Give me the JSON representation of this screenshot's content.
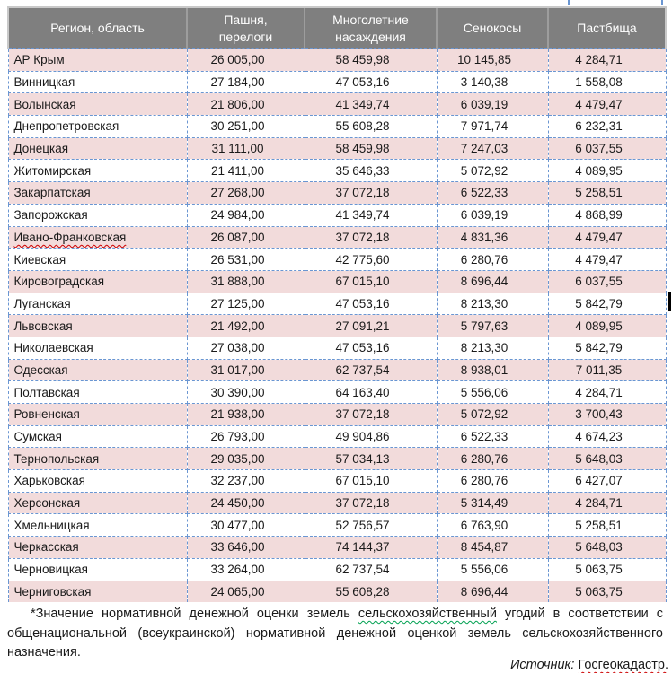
{
  "table": {
    "headers": [
      {
        "lines": [
          "Регион, область"
        ]
      },
      {
        "lines": [
          "Пашня,",
          "перелоги"
        ]
      },
      {
        "lines": [
          "Многолетние",
          "насаждения"
        ]
      },
      {
        "lines": [
          "Сенокосы"
        ]
      },
      {
        "lines": [
          "Пастбища"
        ]
      }
    ],
    "rows": [
      {
        "region": "АР Крым",
        "values": [
          "26 005,00",
          "58 459,98",
          "10 145,85",
          "4 284,71"
        ]
      },
      {
        "region": "Винницкая",
        "values": [
          "27 184,00",
          "47 053,16",
          "3 140,38",
          "1 558,08"
        ]
      },
      {
        "region": "Волынская",
        "values": [
          "21 806,00",
          "41 349,74",
          "6 039,19",
          "4 479,47"
        ]
      },
      {
        "region": "Днепропетровская",
        "values": [
          "30 251,00",
          "55 608,28",
          "7 971,74",
          "6 232,31"
        ]
      },
      {
        "region": "Донецкая",
        "values": [
          "31 111,00",
          "58 459,98",
          "7 247,03",
          "6 037,55"
        ]
      },
      {
        "region": "Житомирская",
        "values": [
          "21 411,00",
          "35 646,33",
          "5 072,92",
          "4 089,95"
        ]
      },
      {
        "region": "Закарпатская",
        "values": [
          "27 268,00",
          "37 072,18",
          "6 522,33",
          "5 258,51"
        ]
      },
      {
        "region": "Запорожская",
        "values": [
          "24 984,00",
          "41 349,74",
          "6 039,19",
          "4 868,99"
        ]
      },
      {
        "region": "Ивано-Франковская",
        "misspelled": true,
        "values": [
          "26 087,00",
          "37 072,18",
          "4 831,36",
          "4 479,47"
        ]
      },
      {
        "region": "Киевская",
        "values": [
          "26 531,00",
          "42 775,60",
          "6 280,76",
          "4 479,47"
        ]
      },
      {
        "region": "Кировоградская",
        "values": [
          "31 888,00",
          "67 015,10",
          "8 696,44",
          "6 037,55"
        ]
      },
      {
        "region": "Луганская",
        "values": [
          "27 125,00",
          "47 053,16",
          "8 213,30",
          "5 842,79"
        ]
      },
      {
        "region": "Львовская",
        "values": [
          "21 492,00",
          "27 091,21",
          "5 797,63",
          "4 089,95"
        ]
      },
      {
        "region": "Николаевская",
        "values": [
          "27 038,00",
          "47 053,16",
          "8 213,30",
          "5 842,79"
        ]
      },
      {
        "region": "Одесская",
        "values": [
          "31 017,00",
          "62 737,54",
          "8 938,01",
          "7 011,35"
        ]
      },
      {
        "region": "Полтавская",
        "values": [
          "30 390,00",
          "64 163,40",
          "5 556,06",
          "4 284,71"
        ]
      },
      {
        "region": "Ровненская",
        "values": [
          "21 938,00",
          "37 072,18",
          "5 072,92",
          "3 700,43"
        ]
      },
      {
        "region": "Сумская",
        "values": [
          "26 793,00",
          "49 904,86",
          "6 522,33",
          "4 674,23"
        ]
      },
      {
        "region": "Тернопольская",
        "values": [
          "29 035,00",
          "57 034,13",
          "6 280,76",
          "5 648,03"
        ]
      },
      {
        "region": "Харьковская",
        "values": [
          "32 237,00",
          "67 015,10",
          "6 280,76",
          "6 427,07"
        ]
      },
      {
        "region": "Херсонская",
        "values": [
          "24 450,00",
          "37 072,18",
          "5 314,49",
          "4 284,71"
        ]
      },
      {
        "region": "Хмельницкая",
        "values": [
          "30 477,00",
          "52 756,57",
          "6 763,90",
          "5 258,51"
        ]
      },
      {
        "region": "Черкасская",
        "values": [
          "33 646,00",
          "74 144,37",
          "8 454,87",
          "5 648,03"
        ]
      },
      {
        "region": "Черновицкая",
        "values": [
          "33 264,00",
          "62 737,54",
          "5 556,06",
          "5 063,75"
        ]
      },
      {
        "region": "Черниговская",
        "values": [
          "24 065,00",
          "55 608,28",
          "8 696,44",
          "5 063,75"
        ]
      }
    ]
  },
  "footnote": {
    "part1": "*Значение нормативной денежной оценки земель ",
    "flagged_word": "сельскохозяйственный",
    "part2": " угодий в соответствии с общенациональной (всеукраинской) нормативной денежной оценкой земель сельскохозяйственного назначения."
  },
  "source": {
    "label": "Источник: ",
    "value": "Госгеокадастр."
  },
  "colors": {
    "header_bg": "#7f7f7f",
    "header_text": "#ffffff",
    "header_divider": "#9d9d9d",
    "header_outline": "#c9c9c9",
    "row_alt": "#f2dbdb",
    "row_base": "#ffffff",
    "gridline": "#6a96d2",
    "spellcheck_red": "#cc0000",
    "grammar_green": "#00a050",
    "text": "#1a1a1a"
  }
}
